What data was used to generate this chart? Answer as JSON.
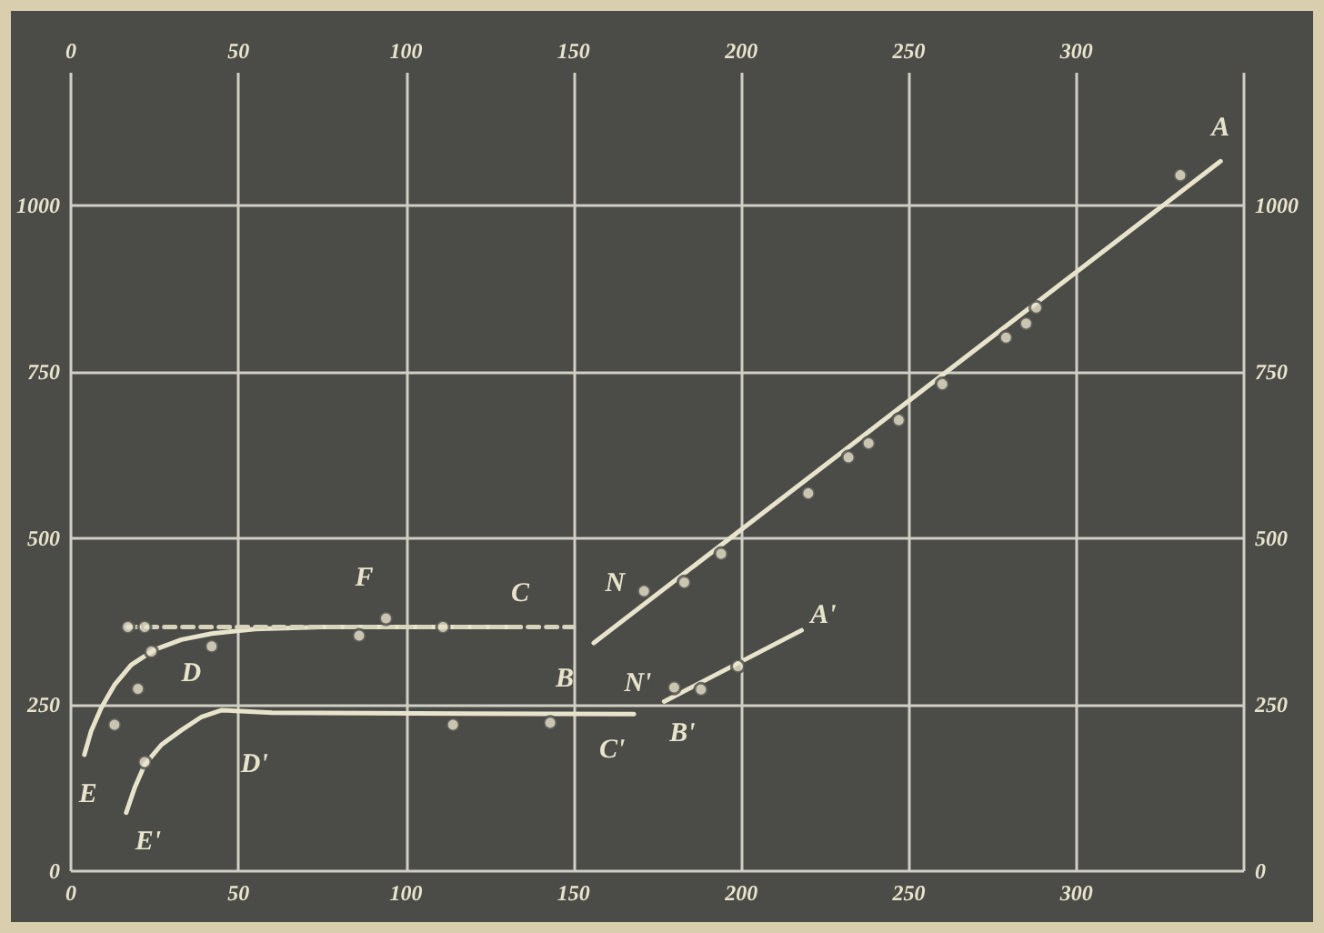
{
  "chart_data": {
    "type": "line",
    "xlim": [
      0,
      350
    ],
    "xticks": [
      0,
      50,
      100,
      150,
      200,
      250,
      300,
      {
        "value": 350,
        "label": null
      }
    ],
    "x2lim": [
      0,
      350
    ],
    "x2ticks": [
      0,
      50,
      100,
      150,
      200,
      250,
      300
    ],
    "ylim": [
      0,
      1200
    ],
    "yticks": [
      0,
      250,
      500,
      750,
      1000
    ],
    "y2lim": [
      0,
      1200
    ],
    "y2ticks": [
      0,
      250,
      500,
      750,
      1000
    ],
    "grid": true,
    "series": [
      {
        "color": "#e8e4cc",
        "marker": "none",
        "x": [
          4,
          6,
          9,
          13,
          18,
          25,
          33,
          42,
          55,
          75,
          134
        ],
        "values": [
          175,
          210,
          245,
          280,
          310,
          333,
          348,
          357,
          364,
          367,
          367
        ]
      },
      {
        "color": "#e8e4cc",
        "marker": "none",
        "x": [
          16.5,
          19,
          22,
          27,
          33,
          39,
          45,
          60,
          168
        ],
        "values": [
          88,
          125,
          160,
          190,
          212,
          232,
          242,
          238,
          236
        ]
      },
      {
        "color": "#e8e4cc",
        "marker": "none",
        "x": [
          156,
          343
        ],
        "values": [
          343,
          1067
        ]
      },
      {
        "color": "#e8e4cc",
        "marker": "none",
        "x": [
          177,
          218
        ],
        "values": [
          255,
          362
        ]
      },
      {
        "color": "#d8d4bc",
        "marker": "none",
        "line_style": "dashed",
        "x": [
          17,
          150
        ],
        "values": [
          367,
          367
        ]
      },
      {
        "type": "scatter",
        "color": "#e8e4cc",
        "marker": "circle",
        "x": [
          17,
          22,
          24,
          42,
          20,
          13,
          86,
          94,
          111,
          22,
          114,
          143,
          171,
          183,
          194,
          220,
          232,
          238,
          247,
          260,
          279,
          285,
          288,
          331,
          180,
          188,
          199
        ],
        "values": [
          367,
          367,
          330,
          338,
          274,
          220,
          354,
          380,
          367,
          164,
          220,
          223,
          421,
          434,
          477,
          568,
          622,
          643,
          678,
          732,
          802,
          823,
          847,
          1046,
          276,
          273,
          308
        ]
      }
    ],
    "annotations": [
      {
        "text": "E",
        "x": 4,
        "y": 175
      },
      {
        "text": "D",
        "x": 24,
        "y": 330
      },
      {
        "text": "F",
        "x": 94,
        "y": 380
      },
      {
        "text": "C",
        "x": 134,
        "y": 367
      },
      {
        "text": "N",
        "x": 171,
        "y": 421
      },
      {
        "text": "B",
        "x": 156,
        "y": 343
      },
      {
        "text": "N'",
        "x": 180,
        "y": 276
      },
      {
        "text": "B'",
        "x": 177,
        "y": 255
      },
      {
        "text": "A'",
        "x": 218,
        "y": 362
      },
      {
        "text": "A",
        "x": 343,
        "y": 1067
      },
      {
        "text": "E'",
        "x": 16.5,
        "y": 88
      },
      {
        "text": "D'",
        "x": 45,
        "y": 242
      },
      {
        "text": "C'",
        "x": 168,
        "y": 236
      }
    ]
  }
}
